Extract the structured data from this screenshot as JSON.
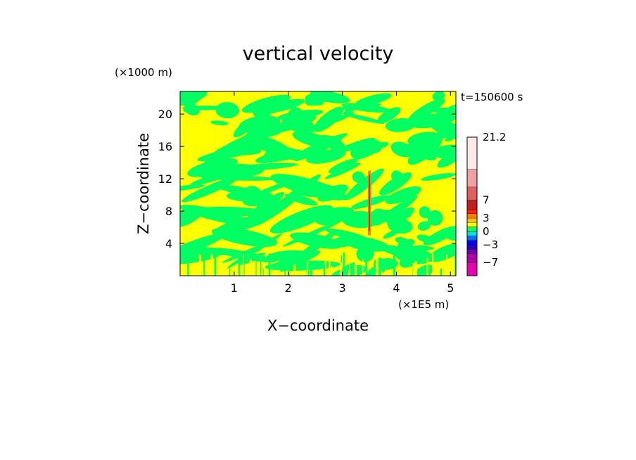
{
  "chart_data": {
    "type": "heatmap",
    "title": "vertical velocity",
    "xlabel": "X−coordinate",
    "ylabel": "Z−coordinate",
    "x_unit": "(×1E5 m)",
    "y_unit": "(×1000 m)",
    "time_label": "t=150600 s",
    "xlim": [
      0,
      5.1
    ],
    "ylim": [
      0,
      22.8
    ],
    "x_ticks": [
      1,
      2,
      3,
      4,
      5
    ],
    "y_ticks": [
      4,
      8,
      12,
      16,
      20
    ],
    "grid": false,
    "colorbar": {
      "range": [
        -10,
        21.2
      ],
      "tick_labels": [
        "21.2",
        "7",
        "3",
        "0",
        "−3",
        "−7"
      ],
      "tick_values": [
        21.2,
        7,
        3,
        0,
        -3,
        -7
      ],
      "levels": [
        {
          "from": -10,
          "to": -7,
          "color": "#e800b0"
        },
        {
          "from": -7,
          "to": -5,
          "color": "#b000a8"
        },
        {
          "from": -5,
          "to": -4,
          "color": "#7000b0"
        },
        {
          "from": -4,
          "to": -3,
          "color": "#2800c8"
        },
        {
          "from": -3,
          "to": -2,
          "color": "#0000ff"
        },
        {
          "from": -2,
          "to": -1,
          "color": "#0070ff"
        },
        {
          "from": -1,
          "to": 0,
          "color": "#00e0e0"
        },
        {
          "from": 0,
          "to": 1,
          "color": "#00ff60"
        },
        {
          "from": 1,
          "to": 2,
          "color": "#ffff00"
        },
        {
          "from": 2,
          "to": 3,
          "color": "#ffc000"
        },
        {
          "from": 3,
          "to": 4,
          "color": "#ff8000"
        },
        {
          "from": 4,
          "to": 5,
          "color": "#ff2000"
        },
        {
          "from": 5,
          "to": 7,
          "color": "#c02020"
        },
        {
          "from": 7,
          "to": 10,
          "color": "#e06060"
        },
        {
          "from": 10,
          "to": 14,
          "color": "#f0a0a0"
        },
        {
          "from": 14,
          "to": 21.2,
          "color": "#ffe8e8"
        }
      ]
    },
    "field_description": {
      "dominant_colors": [
        "#ffff00",
        "#00ff60"
      ],
      "extreme_feature_x": 3.5,
      "extreme_feature_z": [
        5,
        13
      ]
    }
  }
}
